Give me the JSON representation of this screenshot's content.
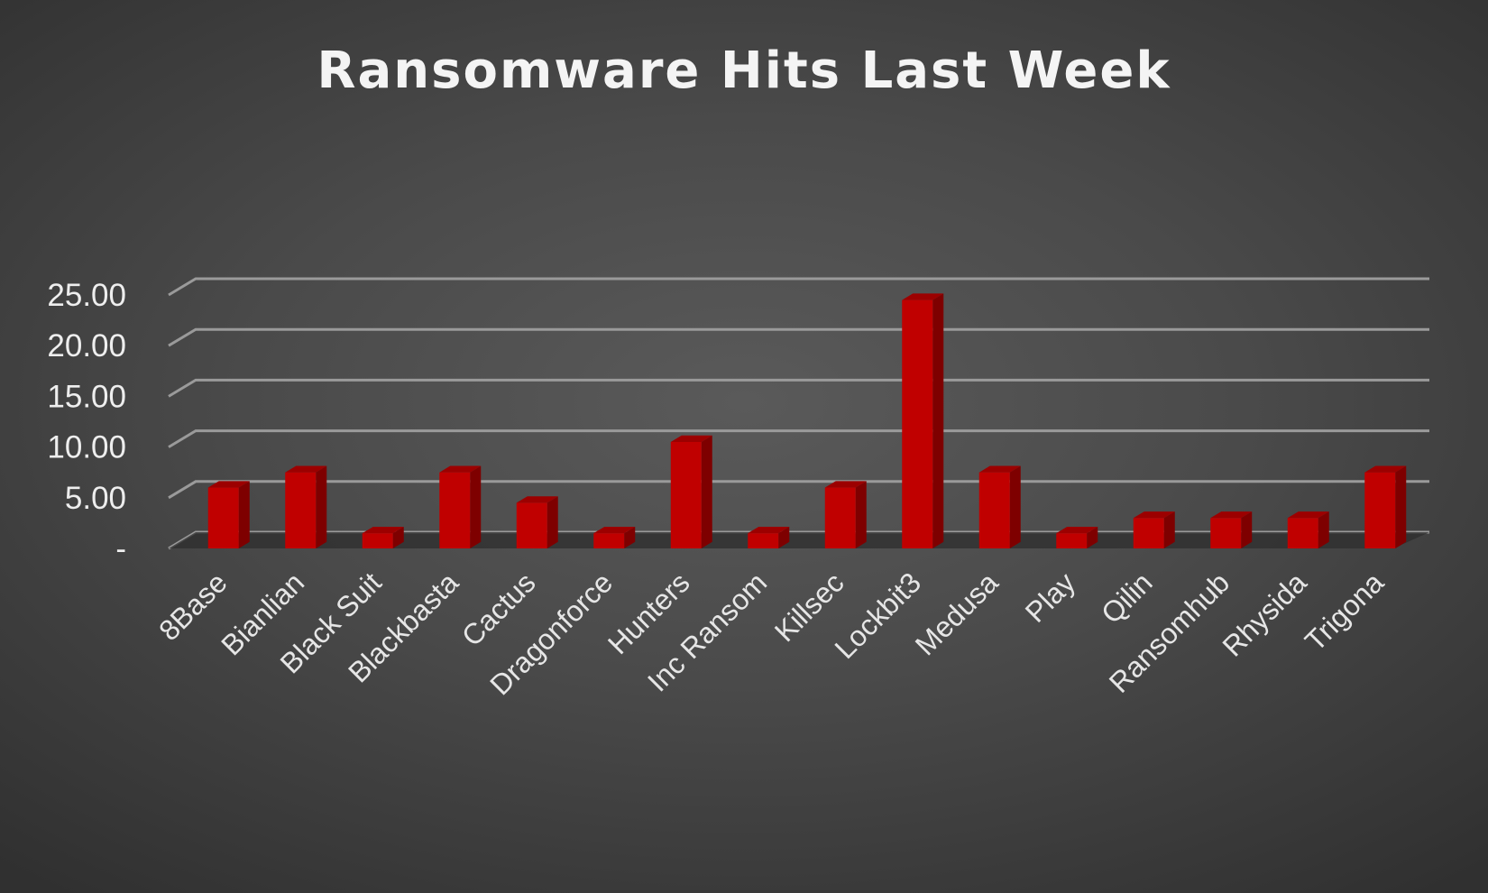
{
  "chart_data": {
    "type": "bar",
    "title": "Ransomware Hits Last Week",
    "categories": [
      "8Base",
      "Bianlian",
      "Black Suit",
      "Blackbasta",
      "Cactus",
      "Dragonforce",
      "Hunters",
      "Inc Ransom",
      "Killsec",
      "Lockbit3",
      "Medusa",
      "Play",
      "Qilin",
      "Ransomhub",
      "Rhysida",
      "Trigona"
    ],
    "series": [
      {
        "values": [
          6,
          7.5,
          1.5,
          7.5,
          4.5,
          1.5,
          10.5,
          1.5,
          6,
          24.5,
          7.5,
          1.5,
          3,
          3,
          3,
          7.5
        ],
        "color": "#c00000"
      }
    ],
    "yticks": [
      "-",
      "5.00",
      "10.00",
      "15.00",
      "20.00",
      "25.00"
    ],
    "ylim": [
      0,
      25
    ],
    "grid": true,
    "legend": "none",
    "xlabel": "",
    "ylabel": ""
  }
}
